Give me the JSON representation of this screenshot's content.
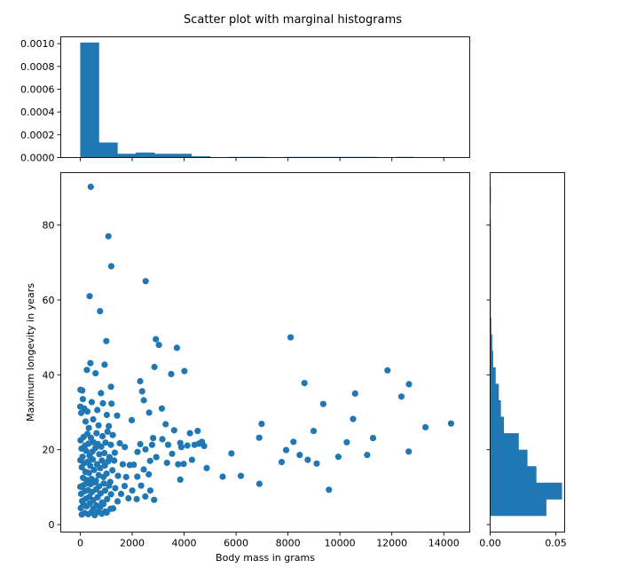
{
  "figure": {
    "title": "Scatter plot with marginal histograms",
    "accent_color": "#1f77b4"
  },
  "chart_data": [
    {
      "type": "scatter",
      "panel": "main",
      "xlabel": "Body mass in grams",
      "ylabel": "Maximum longevity in years",
      "xlim": [
        -750,
        15000
      ],
      "ylim": [
        -2,
        94
      ],
      "xticks": [
        0,
        2000,
        4000,
        6000,
        8000,
        10000,
        12000,
        14000
      ],
      "xtick_labels": [
        "0",
        "2000",
        "4000",
        "6000",
        "8000",
        "10000",
        "12000",
        "14000"
      ],
      "yticks": [
        0,
        20,
        40,
        60,
        80
      ],
      "ytick_labels": [
        "0",
        "20",
        "40",
        "60",
        "80"
      ],
      "grid": false,
      "marker_color": "#1f77b4",
      "points": [
        [
          406,
          90.2
        ],
        [
          1084,
          77
        ],
        [
          1195,
          69
        ],
        [
          2520,
          65
        ],
        [
          359,
          61
        ],
        [
          762,
          57
        ],
        [
          1003,
          49
        ],
        [
          2914,
          49.5
        ],
        [
          3029,
          48
        ],
        [
          3722,
          47.2
        ],
        [
          8101,
          50
        ],
        [
          9,
          36
        ],
        [
          79,
          35.8
        ],
        [
          254,
          41.3
        ],
        [
          391,
          43.1
        ],
        [
          589,
          40.4
        ],
        [
          939,
          42.7
        ],
        [
          1185,
          36.8
        ],
        [
          2309,
          38.3
        ],
        [
          2859,
          42.1
        ],
        [
          3503,
          40.2
        ],
        [
          4013,
          41
        ],
        [
          8636,
          37.8
        ],
        [
          10587,
          35
        ],
        [
          11832,
          41.2
        ],
        [
          12369,
          34.2
        ],
        [
          12658,
          37.5
        ],
        [
          9361,
          32.2
        ],
        [
          13296,
          26
        ],
        [
          14278,
          27
        ],
        [
          3,
          31.5
        ],
        [
          37,
          29.8
        ],
        [
          101,
          33.5
        ],
        [
          157,
          31
        ],
        [
          205,
          27.5
        ],
        [
          276,
          30.2
        ],
        [
          330,
          25.8
        ],
        [
          443,
          32.7
        ],
        [
          496,
          28.1
        ],
        [
          657,
          30.6
        ],
        [
          705,
          26.5
        ],
        [
          798,
          35.1
        ],
        [
          874,
          32.4
        ],
        [
          1022,
          29.3
        ],
        [
          1101,
          26.3
        ],
        [
          1204,
          32.3
        ],
        [
          1421,
          29.1
        ],
        [
          1984,
          27.9
        ],
        [
          2383,
          35.6
        ],
        [
          2448,
          33.2
        ],
        [
          2654,
          29.9
        ],
        [
          2806,
          23.1
        ],
        [
          3142,
          31
        ],
        [
          3288,
          26.8
        ],
        [
          3617,
          25.2
        ],
        [
          3852,
          21.8
        ],
        [
          4223,
          24.4
        ],
        [
          4520,
          25
        ],
        [
          4684,
          22.1
        ],
        [
          6891,
          23.2
        ],
        [
          6984,
          26.9
        ],
        [
          8213,
          22.1
        ],
        [
          8988,
          25
        ],
        [
          10265,
          22
        ],
        [
          10509,
          28.2
        ],
        [
          11277,
          23.1
        ],
        [
          12648,
          19.5
        ],
        [
          12,
          22.5
        ],
        [
          48,
          20.3
        ],
        [
          91,
          18.1
        ],
        [
          132,
          23.4
        ],
        [
          181,
          21.1
        ],
        [
          228,
          19.7
        ],
        [
          272,
          24.2
        ],
        [
          318,
          21.6
        ],
        [
          362,
          18.4
        ],
        [
          412,
          23.2
        ],
        [
          466,
          19.5
        ],
        [
          511,
          22
        ],
        [
          579,
          20.4
        ],
        [
          628,
          24.4
        ],
        [
          683,
          21.5
        ],
        [
          732,
          18.8
        ],
        [
          809,
          20.8
        ],
        [
          855,
          23.6
        ],
        [
          928,
          19.1
        ],
        [
          976,
          21.9
        ],
        [
          1049,
          24.8
        ],
        [
          1127,
          18
        ],
        [
          1179,
          21.3
        ],
        [
          1253,
          23.9
        ],
        [
          1331,
          19.2
        ],
        [
          1522,
          21.7
        ],
        [
          1718,
          20.7
        ],
        [
          2205,
          19.4
        ],
        [
          2311,
          21.5
        ],
        [
          2512,
          20.1
        ],
        [
          2766,
          21.3
        ],
        [
          2929,
          18
        ],
        [
          3163,
          22.8
        ],
        [
          3384,
          21.3
        ],
        [
          3539,
          18.9
        ],
        [
          3892,
          20.7
        ],
        [
          4126,
          21.1
        ],
        [
          4402,
          21.3
        ],
        [
          4567,
          21.6
        ],
        [
          4771,
          21
        ],
        [
          5825,
          19
        ],
        [
          7756,
          16.7
        ],
        [
          7928,
          19.9
        ],
        [
          8451,
          18.6
        ],
        [
          8762,
          17.3
        ],
        [
          9106,
          16.3
        ],
        [
          9941,
          18.1
        ],
        [
          11049,
          18.6
        ],
        [
          5,
          17.2
        ],
        [
          59,
          15.3
        ],
        [
          107,
          12.5
        ],
        [
          146,
          16.4
        ],
        [
          199,
          14.1
        ],
        [
          238,
          11.9
        ],
        [
          287,
          16.8
        ],
        [
          341,
          13.8
        ],
        [
          384,
          15.7
        ],
        [
          429,
          12.2
        ],
        [
          481,
          17.4
        ],
        [
          538,
          14.6
        ],
        [
          602,
          11.7
        ],
        [
          649,
          16.1
        ],
        [
          712,
          13.2
        ],
        [
          769,
          15.1
        ],
        [
          836,
          17.1
        ],
        [
          896,
          12.7
        ],
        [
          948,
          15.8
        ],
        [
          1012,
          13.6
        ],
        [
          1073,
          16.9
        ],
        [
          1152,
          11.4
        ],
        [
          1238,
          14.5
        ],
        [
          1307,
          17.1
        ],
        [
          1454,
          13
        ],
        [
          1638,
          16.1
        ],
        [
          1768,
          12.7
        ],
        [
          1903,
          15.9
        ],
        [
          2059,
          16
        ],
        [
          2199,
          12.8
        ],
        [
          2445,
          14.7
        ],
        [
          2638,
          13.4
        ],
        [
          2692,
          17
        ],
        [
          3338,
          16.5
        ],
        [
          3769,
          16.1
        ],
        [
          3852,
          12
        ],
        [
          3982,
          16.2
        ],
        [
          4304,
          17.3
        ],
        [
          4869,
          15.1
        ],
        [
          5486,
          12.8
        ],
        [
          6184,
          13
        ],
        [
          6899,
          10.9
        ],
        [
          9577,
          9.3
        ],
        [
          2,
          10.1
        ],
        [
          33,
          8.2
        ],
        [
          71,
          6.3
        ],
        [
          117,
          10.5
        ],
        [
          163,
          8.9
        ],
        [
          214,
          6.9
        ],
        [
          256,
          11
        ],
        [
          301,
          9.2
        ],
        [
          349,
          7.4
        ],
        [
          398,
          10.8
        ],
        [
          449,
          8.7
        ],
        [
          502,
          6.5
        ],
        [
          553,
          11.3
        ],
        [
          611,
          9.4
        ],
        [
          667,
          7.3
        ],
        [
          721,
          10.2
        ],
        [
          784,
          8.3
        ],
        [
          841,
          5.9
        ],
        [
          907,
          11
        ],
        [
          958,
          9.1
        ],
        [
          1032,
          6.8
        ],
        [
          1109,
          10.4
        ],
        [
          1183,
          8.1
        ],
        [
          1267,
          4.3
        ],
        [
          1349,
          9.7
        ],
        [
          1437,
          6.2
        ],
        [
          1573,
          8.2
        ],
        [
          1709,
          10.3
        ],
        [
          1856,
          7
        ],
        [
          2002,
          9.1
        ],
        [
          2174,
          6.8
        ],
        [
          2347,
          10.4
        ],
        [
          2505,
          7.5
        ],
        [
          2697,
          9.1
        ],
        [
          2843,
          6.6
        ],
        [
          19,
          4.4
        ],
        [
          61,
          2.7
        ],
        [
          124,
          5.3
        ],
        [
          175,
          3.1
        ],
        [
          243,
          4.9
        ],
        [
          312,
          2.8
        ],
        [
          371,
          5.6
        ],
        [
          436,
          3.3
        ],
        [
          497,
          4.2
        ],
        [
          559,
          2.5
        ],
        [
          621,
          5.1
        ],
        [
          689,
          3.4
        ],
        [
          761,
          4.6
        ],
        [
          828,
          2.9
        ],
        [
          893,
          5.5
        ],
        [
          964,
          3.5
        ],
        [
          1021,
          3.2
        ],
        [
          1169,
          4.2
        ]
      ]
    },
    {
      "type": "bar",
      "panel": "top-marginal-histogram",
      "orientation": "vertical",
      "bin_edges": [
        0,
        714,
        1428,
        2142,
        2856,
        3570,
        4284,
        4998,
        5712,
        6426,
        7140,
        7854,
        8568,
        9282,
        9996,
        10710,
        11424,
        12138,
        12852,
        13566,
        14280
      ],
      "values": [
        0.00101,
        0.000132,
        3.3e-05,
        4.4e-05,
        3.3e-05,
        3.3e-05,
        1.1e-05,
        0,
        5.5e-06,
        5.5e-06,
        0,
        5.5e-06,
        5.5e-06,
        5.5e-06,
        5.5e-06,
        5.5e-06,
        0,
        5.5e-06,
        0,
        0
      ],
      "ylim": [
        0,
        0.00106
      ],
      "yticks": [
        0,
        0.0002,
        0.0004,
        0.0006,
        0.0008,
        0.001
      ],
      "ytick_labels": [
        "0.0000",
        "0.0002",
        "0.0004",
        "0.0006",
        "0.0008",
        "0.0010"
      ],
      "color": "#1f77b4"
    },
    {
      "type": "bar",
      "panel": "right-marginal-histogram",
      "orientation": "horizontal",
      "bin_edges": [
        2.4,
        6.8,
        11.2,
        15.6,
        20,
        24.4,
        28.8,
        33.2,
        37.6,
        42,
        46.4,
        50.8,
        55.2,
        59.6,
        64,
        68.4,
        72.8,
        77.2,
        81.6,
        85.9,
        90.3
      ],
      "values": [
        0.0428,
        0.0547,
        0.0352,
        0.0284,
        0.0218,
        0.0105,
        0.0082,
        0.0066,
        0.0042,
        0.0023,
        0.0016,
        0.0009,
        0.0002,
        0.0002,
        0.0002,
        0.0002,
        0.0002,
        0.0002,
        0,
        0.0002
      ],
      "xlim": [
        0,
        0.0567
      ],
      "xticks": [
        0,
        0.05
      ],
      "xtick_labels": [
        "0.00",
        "0.05"
      ],
      "color": "#1f77b4"
    }
  ]
}
